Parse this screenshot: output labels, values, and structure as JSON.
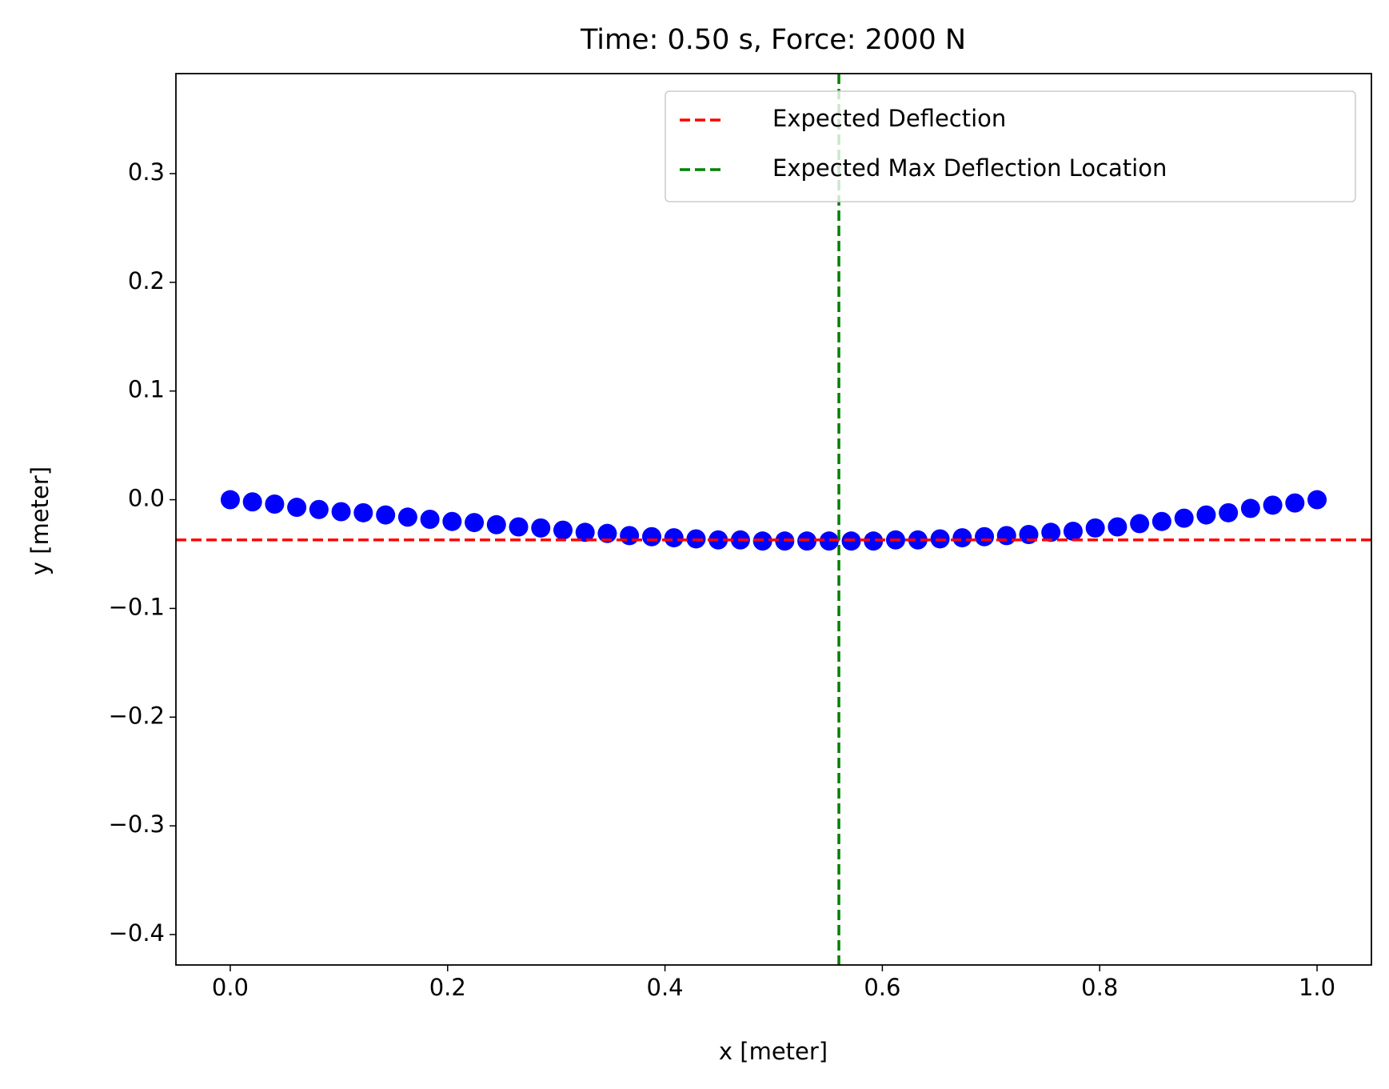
{
  "chart_data": {
    "type": "scatter",
    "title": "Time: 0.50 s, Force: 2000 N",
    "x_label": "x [meter]",
    "y_label": "y [meter]",
    "series": [
      {
        "name": null,
        "color": "#0000ff",
        "x": [
          0,
          0.0204,
          0.0408,
          0.0612,
          0.0816,
          0.102,
          0.1224,
          0.1429,
          0.1633,
          0.1837,
          0.2041,
          0.2245,
          0.2449,
          0.2653,
          0.2857,
          0.3061,
          0.3265,
          0.3469,
          0.3673,
          0.3878,
          0.4082,
          0.4286,
          0.449,
          0.4694,
          0.4898,
          0.5102,
          0.5306,
          0.551,
          0.5714,
          0.5918,
          0.6122,
          0.6327,
          0.6531,
          0.6735,
          0.6939,
          0.7143,
          0.7347,
          0.7551,
          0.7755,
          0.7959,
          0.8163,
          0.8367,
          0.8571,
          0.8776,
          0.898,
          0.9184,
          0.9388,
          0.9592,
          0.9796,
          1
        ],
        "values": [
          0,
          -0.002,
          -0.004,
          -0.007,
          -0.009,
          -0.011,
          -0.012,
          -0.014,
          -0.016,
          -0.018,
          -0.02,
          -0.021,
          -0.023,
          -0.025,
          -0.026,
          -0.028,
          -0.03,
          -0.031,
          -0.033,
          -0.034,
          -0.035,
          -0.036,
          -0.037,
          -0.037,
          -0.038,
          -0.038,
          -0.038,
          -0.038,
          -0.038,
          -0.038,
          -0.037,
          -0.037,
          -0.036,
          -0.035,
          -0.034,
          -0.033,
          -0.032,
          -0.03,
          -0.029,
          -0.026,
          -0.025,
          -0.022,
          -0.02,
          -0.017,
          -0.014,
          -0.012,
          -0.008,
          -0.005,
          -0.003,
          0
        ]
      }
    ],
    "reference_lines": [
      {
        "name": "Expected Deflection",
        "color": "#ff0000",
        "orientation": "horizontal",
        "value": -0.037
      },
      {
        "name": "Expected Max Deflection Location",
        "color": "#008000",
        "orientation": "vertical",
        "value": 0.56
      }
    ],
    "xlim": [
      -0.05,
      1.05
    ],
    "ylim": [
      -0.428,
      0.392
    ],
    "xticks": [
      {
        "value": 0,
        "label": "0.0"
      },
      0.2,
      0.4,
      0.6,
      0.8,
      {
        "value": 1,
        "label": "1.0"
      }
    ],
    "yticks": [
      {
        "value": -0.4,
        "label": "−0.4"
      },
      {
        "value": -0.3,
        "label": "−0.3"
      },
      {
        "value": -0.2,
        "label": "−0.2"
      },
      {
        "value": -0.1,
        "label": "−0.1"
      },
      {
        "value": 0,
        "label": "0.0"
      },
      0.1,
      0.2,
      0.3
    ],
    "legend_position": "upper right",
    "grid": false
  }
}
